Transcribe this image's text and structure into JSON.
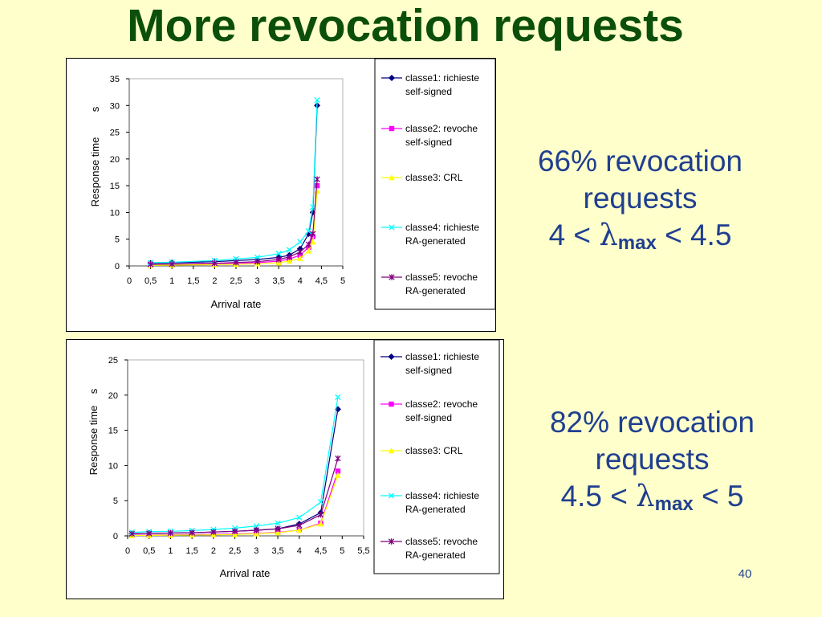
{
  "slide": {
    "title": "More revocation requests",
    "page_number": "40",
    "annotations": [
      {
        "percent_line": "66% revocation",
        "word_line": "requests",
        "lower": "4",
        "lambda": "λ",
        "sub": "max",
        "upper": "4.5"
      },
      {
        "percent_line": "82% revocation",
        "word_line": "requests",
        "lower": "4.5",
        "lambda": "λ",
        "sub": "max",
        "upper": "5"
      }
    ]
  },
  "colors": {
    "background": "#ffffcc",
    "title": "#0b4f0b",
    "annotation": "#1f3f8f"
  },
  "chart_data": [
    {
      "type": "line",
      "ylabel": "Response time",
      "yunit": "s",
      "xlabel": "Arrival rate",
      "xlim": [
        0,
        5
      ],
      "ylim": [
        0,
        35
      ],
      "xticks": [
        "0",
        "0,5",
        "1",
        "1,5",
        "2",
        "2,5",
        "3",
        "3,5",
        "4",
        "4,5",
        "5"
      ],
      "yticks": [
        "0",
        "5",
        "10",
        "15",
        "20",
        "25",
        "30",
        "35"
      ],
      "grid": false,
      "legend_position": "right",
      "series": [
        {
          "name": "classe1: richieste self-signed",
          "color": "#000080",
          "marker": "diamond",
          "points": [
            [
              0.5,
              0.5
            ],
            [
              1,
              0.6
            ],
            [
              2,
              0.8
            ],
            [
              2.5,
              1.0
            ],
            [
              3,
              1.2
            ],
            [
              3.5,
              1.6
            ],
            [
              3.75,
              2.0
            ],
            [
              4,
              3.2
            ],
            [
              4.2,
              6.0
            ],
            [
              4.3,
              10.0
            ],
            [
              4.4,
              30.0
            ]
          ]
        },
        {
          "name": "classe2: revoche self-signed",
          "color": "#ff00ff",
          "marker": "square",
          "points": [
            [
              0.5,
              0.2
            ],
            [
              1,
              0.25
            ],
            [
              2,
              0.4
            ],
            [
              2.5,
              0.5
            ],
            [
              3,
              0.6
            ],
            [
              3.5,
              0.9
            ],
            [
              3.75,
              1.3
            ],
            [
              4,
              2.0
            ],
            [
              4.2,
              3.5
            ],
            [
              4.3,
              5.5
            ],
            [
              4.4,
              15.0
            ]
          ]
        },
        {
          "name": "classe3: CRL",
          "color": "#ffff00",
          "marker": "triangle",
          "points": [
            [
              0.5,
              0.1
            ],
            [
              1,
              0.15
            ],
            [
              2,
              0.25
            ],
            [
              2.5,
              0.3
            ],
            [
              3,
              0.4
            ],
            [
              3.5,
              0.6
            ],
            [
              3.75,
              0.9
            ],
            [
              4,
              1.4
            ],
            [
              4.2,
              2.8
            ],
            [
              4.3,
              4.5
            ],
            [
              4.4,
              14.0
            ]
          ]
        },
        {
          "name": "classe4: richieste RA-generated",
          "color": "#00ffff",
          "marker": "x",
          "points": [
            [
              0.5,
              0.6
            ],
            [
              1,
              0.7
            ],
            [
              2,
              1.0
            ],
            [
              2.5,
              1.3
            ],
            [
              3,
              1.6
            ],
            [
              3.5,
              2.3
            ],
            [
              3.75,
              3.0
            ],
            [
              4,
              4.5
            ],
            [
              4.2,
              6.5
            ],
            [
              4.3,
              11.0
            ],
            [
              4.4,
              31.0
            ]
          ]
        },
        {
          "name": "classe5: revoche RA-generated",
          "color": "#800080",
          "marker": "star",
          "points": [
            [
              0.5,
              0.3
            ],
            [
              1,
              0.35
            ],
            [
              2,
              0.5
            ],
            [
              2.5,
              0.65
            ],
            [
              3,
              0.8
            ],
            [
              3.5,
              1.2
            ],
            [
              3.75,
              1.7
            ],
            [
              4,
              2.6
            ],
            [
              4.2,
              4.0
            ],
            [
              4.3,
              6.0
            ],
            [
              4.4,
              16.2
            ]
          ]
        }
      ]
    },
    {
      "type": "line",
      "ylabel": "Response time",
      "yunit": "s",
      "xlabel": "Arrival rate",
      "xlim": [
        0,
        5.5
      ],
      "ylim": [
        0,
        25
      ],
      "xticks": [
        "0",
        "0,5",
        "1",
        "1,5",
        "2",
        "2,5",
        "3",
        "3,5",
        "4",
        "4,5",
        "5",
        "5,5"
      ],
      "yticks": [
        "0",
        "5",
        "10",
        "15",
        "20",
        "25"
      ],
      "grid": false,
      "legend_position": "right",
      "series": [
        {
          "name": "classe1: richieste self-signed",
          "color": "#000080",
          "marker": "diamond",
          "points": [
            [
              0.1,
              0.3
            ],
            [
              0.5,
              0.35
            ],
            [
              1,
              0.4
            ],
            [
              1.5,
              0.45
            ],
            [
              2,
              0.55
            ],
            [
              2.5,
              0.65
            ],
            [
              3,
              0.8
            ],
            [
              3.5,
              1.0
            ],
            [
              4,
              1.7
            ],
            [
              4.5,
              3.3
            ],
            [
              4.9,
              18.0
            ]
          ]
        },
        {
          "name": "classe2: revoche self-signed",
          "color": "#ff00ff",
          "marker": "square",
          "points": [
            [
              0.1,
              0.1
            ],
            [
              0.5,
              0.12
            ],
            [
              1,
              0.15
            ],
            [
              1.5,
              0.18
            ],
            [
              2,
              0.22
            ],
            [
              2.5,
              0.28
            ],
            [
              3,
              0.35
            ],
            [
              3.5,
              0.5
            ],
            [
              4,
              0.8
            ],
            [
              4.5,
              1.8
            ],
            [
              4.9,
              9.2
            ]
          ]
        },
        {
          "name": "classe3: CRL",
          "color": "#ffff00",
          "marker": "triangle",
          "points": [
            [
              0.1,
              0.05
            ],
            [
              0.5,
              0.07
            ],
            [
              1,
              0.1
            ],
            [
              1.5,
              0.12
            ],
            [
              2,
              0.15
            ],
            [
              2.5,
              0.2
            ],
            [
              3,
              0.3
            ],
            [
              3.5,
              0.45
            ],
            [
              4,
              0.8
            ],
            [
              4.5,
              1.7
            ],
            [
              4.9,
              8.6
            ]
          ]
        },
        {
          "name": "classe4: richieste RA-generated",
          "color": "#00ffff",
          "marker": "x",
          "points": [
            [
              0.1,
              0.5
            ],
            [
              0.5,
              0.6
            ],
            [
              1,
              0.65
            ],
            [
              1.5,
              0.75
            ],
            [
              2,
              0.9
            ],
            [
              2.5,
              1.1
            ],
            [
              3,
              1.4
            ],
            [
              3.5,
              1.8
            ],
            [
              4,
              2.6
            ],
            [
              4.5,
              4.8
            ],
            [
              4.9,
              19.7
            ]
          ]
        },
        {
          "name": "classe5: revoche RA-generated",
          "color": "#800080",
          "marker": "star",
          "points": [
            [
              0.1,
              0.3
            ],
            [
              0.5,
              0.35
            ],
            [
              1,
              0.4
            ],
            [
              1.5,
              0.45
            ],
            [
              2,
              0.55
            ],
            [
              2.5,
              0.65
            ],
            [
              3,
              0.8
            ],
            [
              3.5,
              1.0
            ],
            [
              4,
              1.5
            ],
            [
              4.5,
              3.0
            ],
            [
              4.9,
              11.0
            ]
          ]
        }
      ]
    }
  ]
}
